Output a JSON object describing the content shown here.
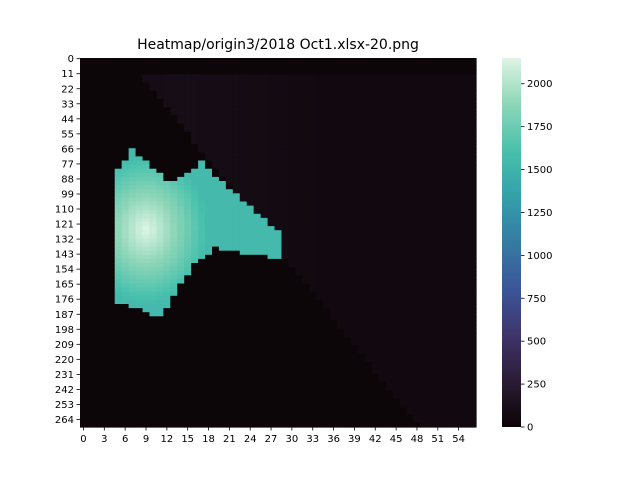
{
  "chart_data": {
    "type": "heatmap",
    "title": "Heatmap/origin3/2018 Oct1.xlsx-20.png",
    "xlabel": "",
    "ylabel": "",
    "rows": 270,
    "cols": 57,
    "x_ticks": [
      0,
      3,
      6,
      9,
      12,
      15,
      18,
      21,
      24,
      27,
      30,
      33,
      36,
      39,
      42,
      45,
      48,
      51,
      54
    ],
    "y_ticks": [
      0,
      11,
      22,
      33,
      44,
      55,
      66,
      77,
      88,
      99,
      110,
      121,
      132,
      143,
      154,
      165,
      176,
      187,
      198,
      209,
      220,
      231,
      242,
      253,
      264
    ],
    "colorbar": {
      "min": 0,
      "max": 2150,
      "ticks": [
        0,
        250,
        500,
        750,
        1000,
        1250,
        1500,
        1750,
        2000
      ],
      "colormap": "mako",
      "stops": [
        "#0b0405",
        "#2b1c35",
        "#3e356b",
        "#3b5698",
        "#357ba3",
        "#34a0a9",
        "#49c1ad",
        "#8ed6b8",
        "#def5e5"
      ]
    },
    "background_level": 60,
    "hot_region": {
      "description_values": "high-intensity region between rows ~66-186 and columns ~5-28",
      "peak_value": 2150,
      "edge_value": 1550,
      "left_col": 5,
      "top_row_at_left": 66,
      "bottom_row_at_left": 178,
      "peak_row": 125,
      "peak_col": 9,
      "right_col": 28,
      "right_top_row": 128,
      "right_bottom_row": 146
    },
    "diagonal_boundary": {
      "start_col": 13,
      "start_row": 40,
      "end_col": 44,
      "end_row": 240
    }
  }
}
